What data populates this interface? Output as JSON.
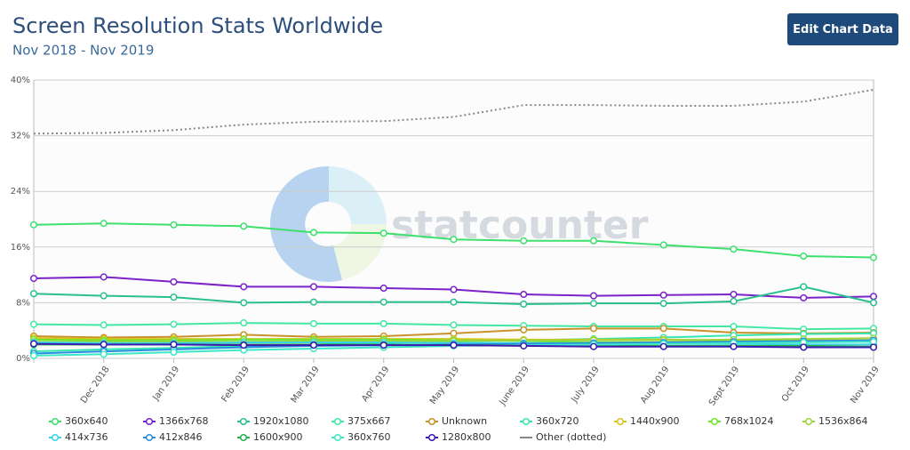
{
  "ui": {
    "button": "Edit Chart Data"
  },
  "chart_data": {
    "type": "line",
    "title": "Screen Resolution Stats Worldwide",
    "subtitle": "Nov 2018 - Nov 2019",
    "watermark": "statcounter",
    "categories": [
      null,
      "Dec 2018",
      "Jan 2019",
      "Feb 2019",
      "Mar 2019",
      "Apr 2019",
      "May 2019",
      "June 2019",
      "July 2019",
      "Aug 2019",
      "Sept 2019",
      "Oct 2019",
      "Nov 2019"
    ],
    "ylim": [
      0,
      40
    ],
    "yticks": [
      {
        "value": 0,
        "label": "0%"
      },
      {
        "value": 8,
        "label": "8%"
      },
      {
        "value": 16,
        "label": "16%"
      },
      {
        "value": 24,
        "label": "24%"
      },
      {
        "value": 32,
        "label": "32%"
      },
      {
        "value": 40,
        "label": "40%"
      }
    ],
    "grid": true,
    "legend": "bottom",
    "series": [
      {
        "name": "360x640",
        "color": "#3ee06e",
        "values": [
          19.2,
          19.4,
          19.2,
          19.0,
          18.1,
          18.0,
          17.1,
          16.9,
          16.9,
          16.3,
          15.7,
          14.7,
          14.5
        ]
      },
      {
        "name": "1366x768",
        "color": "#7a22c8",
        "values": [
          11.5,
          11.7,
          11.0,
          10.3,
          10.3,
          10.1,
          9.9,
          9.2,
          9.0,
          9.1,
          9.2,
          8.7,
          8.9
        ]
      },
      {
        "name": "1920x1080",
        "color": "#2ac08c",
        "values": [
          9.3,
          9.0,
          8.8,
          8.0,
          8.1,
          8.1,
          8.1,
          7.8,
          7.9,
          7.9,
          8.2,
          10.3,
          8.0
        ]
      },
      {
        "name": "375x667",
        "color": "#44e8a4",
        "values": [
          4.9,
          4.8,
          4.9,
          5.1,
          5.0,
          5.0,
          4.8,
          4.7,
          4.6,
          4.6,
          4.6,
          4.2,
          4.3
        ]
      },
      {
        "name": "Unknown",
        "color": "#c8922a",
        "values": [
          3.2,
          3.0,
          3.1,
          3.4,
          3.1,
          3.2,
          3.6,
          4.1,
          4.3,
          4.3,
          3.7,
          3.6,
          3.7
        ]
      },
      {
        "name": "360x720",
        "color": "#34e6b0",
        "values": [
          1.0,
          1.3,
          1.5,
          1.8,
          2.0,
          2.2,
          2.4,
          2.6,
          2.8,
          3.0,
          3.3,
          3.5,
          3.6
        ]
      },
      {
        "name": "1440x900",
        "color": "#d8c21c",
        "values": [
          2.9,
          2.8,
          2.8,
          2.8,
          2.8,
          2.8,
          2.8,
          2.7,
          2.7,
          2.7,
          2.6,
          2.6,
          2.6
        ]
      },
      {
        "name": "768x1024",
        "color": "#6ee62c",
        "values": [
          2.7,
          2.6,
          2.6,
          2.7,
          2.7,
          2.7,
          2.6,
          2.5,
          2.3,
          2.3,
          2.5,
          2.5,
          2.4
        ]
      },
      {
        "name": "1536x864",
        "color": "#9ed43a",
        "values": [
          2.4,
          2.4,
          2.4,
          2.4,
          2.5,
          2.5,
          2.5,
          2.6,
          2.6,
          2.6,
          2.7,
          2.8,
          2.9
        ]
      },
      {
        "name": "414x736",
        "color": "#36d6e8",
        "values": [
          2.3,
          2.2,
          2.2,
          2.3,
          2.3,
          2.3,
          2.2,
          2.2,
          2.2,
          2.1,
          2.1,
          2.0,
          2.0
        ]
      },
      {
        "name": "412x846",
        "color": "#2a8ee0",
        "values": [
          0.7,
          1.0,
          1.3,
          1.6,
          1.8,
          1.9,
          2.0,
          2.1,
          2.2,
          2.3,
          2.4,
          2.5,
          2.6
        ]
      },
      {
        "name": "1600x900",
        "color": "#26b04a",
        "values": [
          2.0,
          2.0,
          2.0,
          2.0,
          2.0,
          2.0,
          1.9,
          1.9,
          1.9,
          1.8,
          1.8,
          1.8,
          1.7
        ]
      },
      {
        "name": "360x760",
        "color": "#3de8c8",
        "values": [
          0.4,
          0.6,
          0.9,
          1.2,
          1.4,
          1.6,
          1.8,
          1.9,
          2.0,
          2.1,
          2.2,
          2.3,
          2.4
        ]
      },
      {
        "name": "1280x800",
        "color": "#3b1ab0",
        "values": [
          2.1,
          2.0,
          2.0,
          1.9,
          1.9,
          1.9,
          1.9,
          1.8,
          1.7,
          1.7,
          1.7,
          1.6,
          1.6
        ]
      },
      {
        "name": "Other (dotted)",
        "color": "#888888",
        "line_style": "dotted",
        "values": [
          32.3,
          32.4,
          32.8,
          33.6,
          34.0,
          34.1,
          34.7,
          36.4,
          36.4,
          36.3,
          36.3,
          36.9,
          38.6
        ]
      }
    ]
  }
}
